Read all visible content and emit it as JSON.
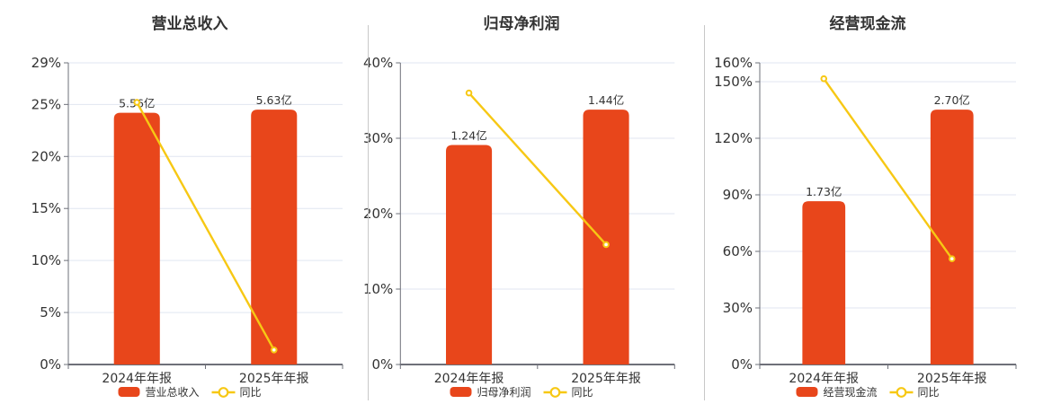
{
  "colors": {
    "bar": "#e8461b",
    "line": "#f7c814",
    "grid": "#e0e6f1",
    "axis": "#6e7079",
    "text": "#333333"
  },
  "chart_data": [
    {
      "type": "bar+line",
      "title": "营业总收入",
      "categories": [
        "2024年年报",
        "2025年年报"
      ],
      "bar_series": {
        "name": "营业总收入",
        "unit": "亿",
        "values": [
          5.56,
          5.63
        ],
        "labels": [
          "5.56亿",
          "5.63亿"
        ]
      },
      "line_series": {
        "name": "同比",
        "unit": "%",
        "values": [
          25.2,
          1.4
        ]
      },
      "y_axis": {
        "ticks": [
          0,
          5,
          10,
          15,
          20,
          25,
          29
        ],
        "tick_labels": [
          "0%",
          "5%",
          "10%",
          "15%",
          "20%",
          "25%",
          "29%"
        ],
        "max": 29
      },
      "legend": [
        "营业总收入",
        "同比"
      ]
    },
    {
      "type": "bar+line",
      "title": "归母净利润",
      "categories": [
        "2024年年报",
        "2025年年报"
      ],
      "bar_series": {
        "name": "归母净利润",
        "unit": "亿",
        "values": [
          1.24,
          1.44
        ],
        "labels": [
          "1.24亿",
          "1.44亿"
        ]
      },
      "line_series": {
        "name": "同比",
        "unit": "%",
        "values": [
          36.0,
          15.9
        ]
      },
      "y_axis": {
        "ticks": [
          0,
          10,
          20,
          30,
          40
        ],
        "tick_labels": [
          "0%",
          "10%",
          "20%",
          "30%",
          "40%"
        ],
        "max": 40
      },
      "legend": [
        "归母净利润",
        "同比"
      ]
    },
    {
      "type": "bar+line",
      "title": "经营现金流",
      "categories": [
        "2024年年报",
        "2025年年报"
      ],
      "bar_series": {
        "name": "经营现金流",
        "unit": "亿",
        "values": [
          1.73,
          2.7
        ],
        "labels": [
          "1.73亿",
          "2.70亿"
        ]
      },
      "line_series": {
        "name": "同比",
        "unit": "%",
        "values": [
          151.6,
          56.1
        ]
      },
      "y_axis": {
        "ticks": [
          0,
          30,
          60,
          90,
          120,
          150,
          160
        ],
        "tick_labels": [
          "0%",
          "30%",
          "60%",
          "90%",
          "120%",
          "150%",
          "160%"
        ],
        "max": 160
      },
      "legend": [
        "经营现金流",
        "同比"
      ]
    }
  ]
}
